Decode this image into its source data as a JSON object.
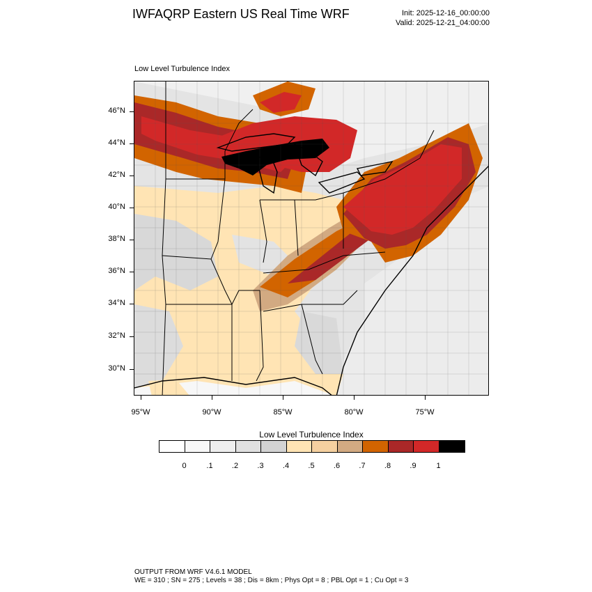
{
  "header": {
    "title": "IWFAQRP Eastern US Real Time WRF",
    "init": "Init: 2025-12-16_00:00:00",
    "valid": "Valid: 2025-12-21_04:00:00"
  },
  "map": {
    "subtitle": "Low Level Turbulence Index",
    "lat_labels": [
      "46°N",
      "44°N",
      "42°N",
      "40°N",
      "38°N",
      "36°N",
      "34°N",
      "32°N",
      "30°N"
    ],
    "lon_labels": [
      "95°W",
      "90°W",
      "85°W",
      "80°W",
      "75°W"
    ]
  },
  "colorbar": {
    "title": "Low Level Turbulence Index",
    "colors": [
      "#ffffff",
      "#f7f7f7",
      "#eeeeee",
      "#e0e0e0",
      "#d3d3d3",
      "#ffe4b4",
      "#f5d0a0",
      "#d2aa82",
      "#d26400",
      "#aa2828",
      "#d22828",
      "#000000"
    ],
    "labels": [
      "0",
      ".1",
      ".2",
      ".3",
      ".4",
      ".5",
      ".6",
      ".7",
      ".8",
      ".9",
      "1"
    ]
  },
  "footer": {
    "line1": "OUTPUT FROM WRF V4.6.1 MODEL",
    "line2": "WE = 310 ; SN = 275 ; Levels = 38 ; Dis = 8km ; Phys Opt = 8 ; PBL Opt = 1 ; Cu Opt = 3"
  }
}
